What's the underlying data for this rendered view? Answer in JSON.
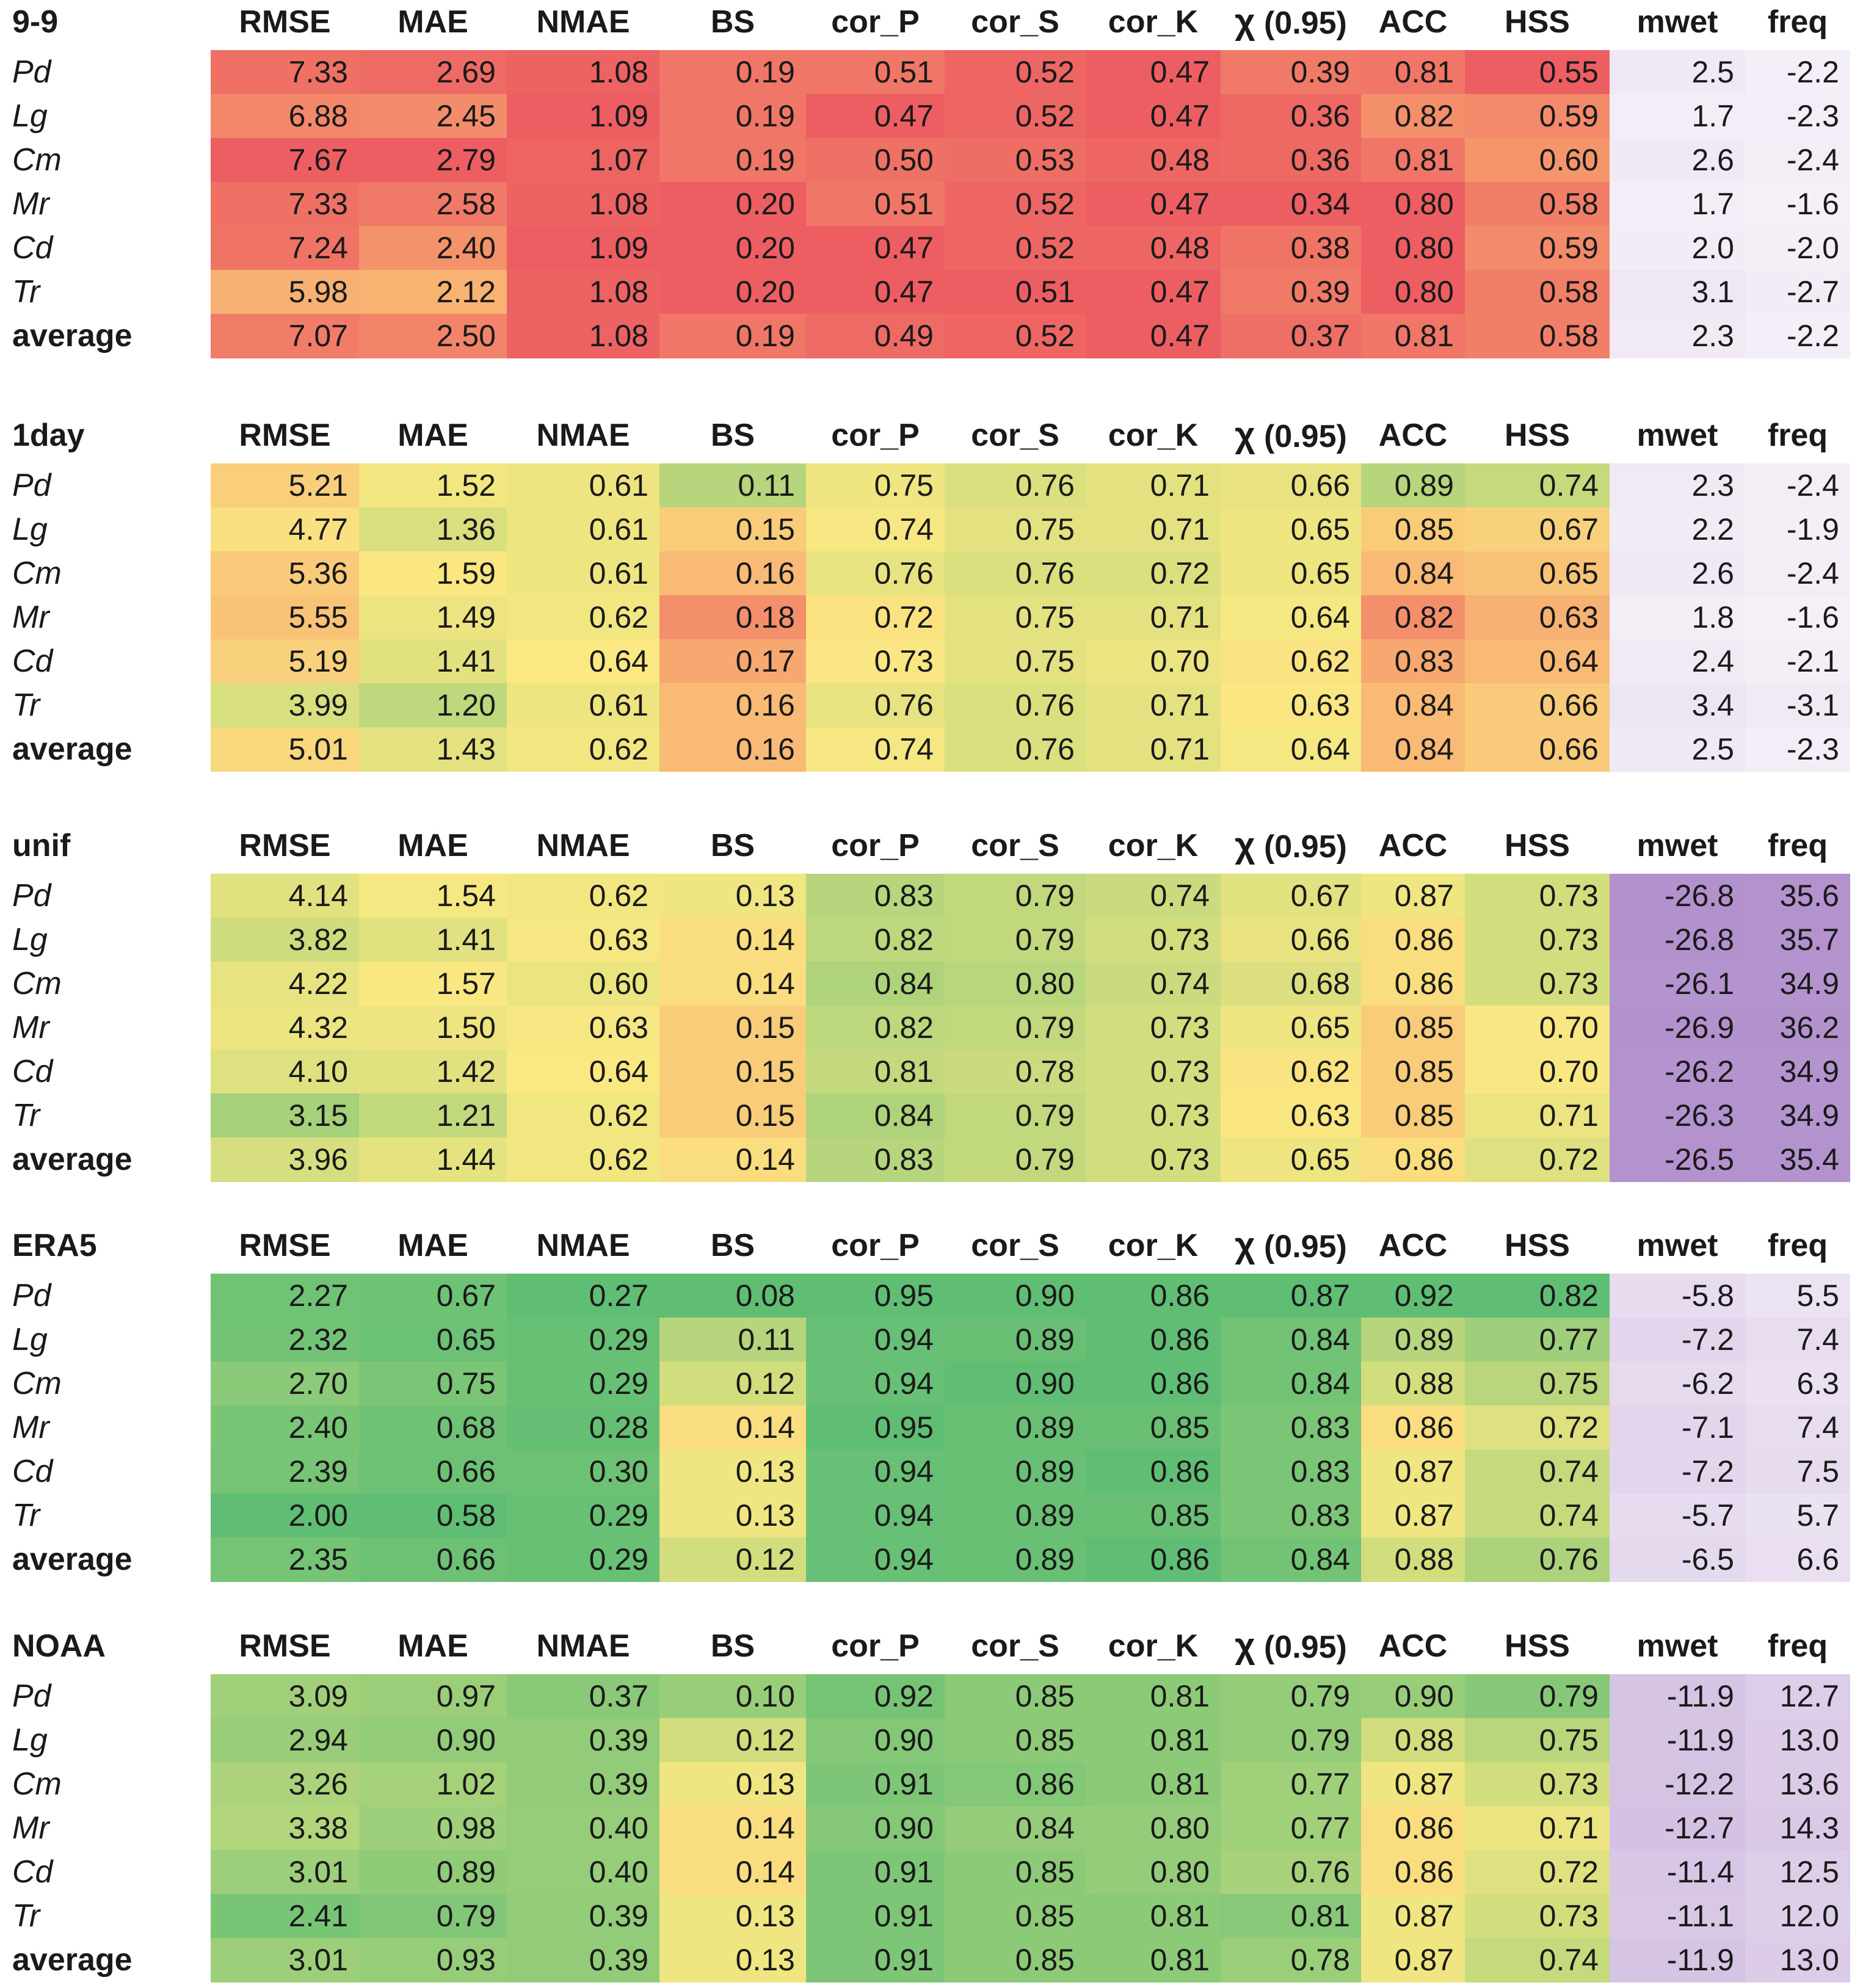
{
  "chart_data": {
    "type": "table",
    "columns": [
      "RMSE",
      "MAE",
      "NMAE",
      "BS",
      "cor_P",
      "cor_S",
      "cor_K",
      "χ (0.95)",
      "ACC",
      "HSS",
      "mwet",
      "freq"
    ],
    "column_header_parts": {
      "chi_symbol": "χ",
      "chi_suffix": " (0.95)"
    },
    "tables": [
      {
        "title": "9-9",
        "rows": [
          {
            "label": "Pd",
            "values": [
              "7.33",
              "2.69",
              "1.08",
              "0.19",
              "0.51",
              "0.52",
              "0.47",
              "0.39",
              "0.81",
              "0.55",
              "2.5",
              "-2.2"
            ]
          },
          {
            "label": "Lg",
            "values": [
              "6.88",
              "2.45",
              "1.09",
              "0.19",
              "0.47",
              "0.52",
              "0.47",
              "0.36",
              "0.82",
              "0.59",
              "1.7",
              "-2.3"
            ]
          },
          {
            "label": "Cm",
            "values": [
              "7.67",
              "2.79",
              "1.07",
              "0.19",
              "0.50",
              "0.53",
              "0.48",
              "0.36",
              "0.81",
              "0.60",
              "2.6",
              "-2.4"
            ]
          },
          {
            "label": "Mr",
            "values": [
              "7.33",
              "2.58",
              "1.08",
              "0.20",
              "0.51",
              "0.52",
              "0.47",
              "0.34",
              "0.80",
              "0.58",
              "1.7",
              "-1.6"
            ]
          },
          {
            "label": "Cd",
            "values": [
              "7.24",
              "2.40",
              "1.09",
              "0.20",
              "0.47",
              "0.52",
              "0.48",
              "0.38",
              "0.80",
              "0.59",
              "2.0",
              "-2.0"
            ]
          },
          {
            "label": "Tr",
            "values": [
              "5.98",
              "2.12",
              "1.08",
              "0.20",
              "0.47",
              "0.51",
              "0.47",
              "0.39",
              "0.80",
              "0.58",
              "3.1",
              "-2.7"
            ]
          },
          {
            "label": "average",
            "values": [
              "7.07",
              "2.50",
              "1.08",
              "0.19",
              "0.49",
              "0.52",
              "0.47",
              "0.37",
              "0.81",
              "0.58",
              "2.3",
              "-2.2"
            ]
          }
        ]
      },
      {
        "title": "1day",
        "rows": [
          {
            "label": "Pd",
            "values": [
              "5.21",
              "1.52",
              "0.61",
              "0.11",
              "0.75",
              "0.76",
              "0.71",
              "0.66",
              "0.89",
              "0.74",
              "2.3",
              "-2.4"
            ]
          },
          {
            "label": "Lg",
            "values": [
              "4.77",
              "1.36",
              "0.61",
              "0.15",
              "0.74",
              "0.75",
              "0.71",
              "0.65",
              "0.85",
              "0.67",
              "2.2",
              "-1.9"
            ]
          },
          {
            "label": "Cm",
            "values": [
              "5.36",
              "1.59",
              "0.61",
              "0.16",
              "0.76",
              "0.76",
              "0.72",
              "0.65",
              "0.84",
              "0.65",
              "2.6",
              "-2.4"
            ]
          },
          {
            "label": "Mr",
            "values": [
              "5.55",
              "1.49",
              "0.62",
              "0.18",
              "0.72",
              "0.75",
              "0.71",
              "0.64",
              "0.82",
              "0.63",
              "1.8",
              "-1.6"
            ]
          },
          {
            "label": "Cd",
            "values": [
              "5.19",
              "1.41",
              "0.64",
              "0.17",
              "0.73",
              "0.75",
              "0.70",
              "0.62",
              "0.83",
              "0.64",
              "2.4",
              "-2.1"
            ]
          },
          {
            "label": "Tr",
            "values": [
              "3.99",
              "1.20",
              "0.61",
              "0.16",
              "0.76",
              "0.76",
              "0.71",
              "0.63",
              "0.84",
              "0.66",
              "3.4",
              "-3.1"
            ]
          },
          {
            "label": "average",
            "values": [
              "5.01",
              "1.43",
              "0.62",
              "0.16",
              "0.74",
              "0.76",
              "0.71",
              "0.64",
              "0.84",
              "0.66",
              "2.5",
              "-2.3"
            ]
          }
        ]
      },
      {
        "title": "unif",
        "rows": [
          {
            "label": "Pd",
            "values": [
              "4.14",
              "1.54",
              "0.62",
              "0.13",
              "0.83",
              "0.79",
              "0.74",
              "0.67",
              "0.87",
              "0.73",
              "-26.8",
              "35.6"
            ]
          },
          {
            "label": "Lg",
            "values": [
              "3.82",
              "1.41",
              "0.63",
              "0.14",
              "0.82",
              "0.79",
              "0.73",
              "0.66",
              "0.86",
              "0.73",
              "-26.8",
              "35.7"
            ]
          },
          {
            "label": "Cm",
            "values": [
              "4.22",
              "1.57",
              "0.60",
              "0.14",
              "0.84",
              "0.80",
              "0.74",
              "0.68",
              "0.86",
              "0.73",
              "-26.1",
              "34.9"
            ]
          },
          {
            "label": "Mr",
            "values": [
              "4.32",
              "1.50",
              "0.63",
              "0.15",
              "0.82",
              "0.79",
              "0.73",
              "0.65",
              "0.85",
              "0.70",
              "-26.9",
              "36.2"
            ]
          },
          {
            "label": "Cd",
            "values": [
              "4.10",
              "1.42",
              "0.64",
              "0.15",
              "0.81",
              "0.78",
              "0.73",
              "0.62",
              "0.85",
              "0.70",
              "-26.2",
              "34.9"
            ]
          },
          {
            "label": "Tr",
            "values": [
              "3.15",
              "1.21",
              "0.62",
              "0.15",
              "0.84",
              "0.79",
              "0.73",
              "0.63",
              "0.85",
              "0.71",
              "-26.3",
              "34.9"
            ]
          },
          {
            "label": "average",
            "values": [
              "3.96",
              "1.44",
              "0.62",
              "0.14",
              "0.83",
              "0.79",
              "0.73",
              "0.65",
              "0.86",
              "0.72",
              "-26.5",
              "35.4"
            ]
          }
        ]
      },
      {
        "title": "ERA5",
        "rows": [
          {
            "label": "Pd",
            "values": [
              "2.27",
              "0.67",
              "0.27",
              "0.08",
              "0.95",
              "0.90",
              "0.86",
              "0.87",
              "0.92",
              "0.82",
              "-5.8",
              "5.5"
            ]
          },
          {
            "label": "Lg",
            "values": [
              "2.32",
              "0.65",
              "0.29",
              "0.11",
              "0.94",
              "0.89",
              "0.86",
              "0.84",
              "0.89",
              "0.77",
              "-7.2",
              "7.4"
            ]
          },
          {
            "label": "Cm",
            "values": [
              "2.70",
              "0.75",
              "0.29",
              "0.12",
              "0.94",
              "0.90",
              "0.86",
              "0.84",
              "0.88",
              "0.75",
              "-6.2",
              "6.3"
            ]
          },
          {
            "label": "Mr",
            "values": [
              "2.40",
              "0.68",
              "0.28",
              "0.14",
              "0.95",
              "0.89",
              "0.85",
              "0.83",
              "0.86",
              "0.72",
              "-7.1",
              "7.4"
            ]
          },
          {
            "label": "Cd",
            "values": [
              "2.39",
              "0.66",
              "0.30",
              "0.13",
              "0.94",
              "0.89",
              "0.86",
              "0.83",
              "0.87",
              "0.74",
              "-7.2",
              "7.5"
            ]
          },
          {
            "label": "Tr",
            "values": [
              "2.00",
              "0.58",
              "0.29",
              "0.13",
              "0.94",
              "0.89",
              "0.85",
              "0.83",
              "0.87",
              "0.74",
              "-5.7",
              "5.7"
            ]
          },
          {
            "label": "average",
            "values": [
              "2.35",
              "0.66",
              "0.29",
              "0.12",
              "0.94",
              "0.89",
              "0.86",
              "0.84",
              "0.88",
              "0.76",
              "-6.5",
              "6.6"
            ]
          }
        ]
      },
      {
        "title": "NOAA",
        "rows": [
          {
            "label": "Pd",
            "values": [
              "3.09",
              "0.97",
              "0.37",
              "0.10",
              "0.92",
              "0.85",
              "0.81",
              "0.79",
              "0.90",
              "0.79",
              "-11.9",
              "12.7"
            ]
          },
          {
            "label": "Lg",
            "values": [
              "2.94",
              "0.90",
              "0.39",
              "0.12",
              "0.90",
              "0.85",
              "0.81",
              "0.79",
              "0.88",
              "0.75",
              "-11.9",
              "13.0"
            ]
          },
          {
            "label": "Cm",
            "values": [
              "3.26",
              "1.02",
              "0.39",
              "0.13",
              "0.91",
              "0.86",
              "0.81",
              "0.77",
              "0.87",
              "0.73",
              "-12.2",
              "13.6"
            ]
          },
          {
            "label": "Mr",
            "values": [
              "3.38",
              "0.98",
              "0.40",
              "0.14",
              "0.90",
              "0.84",
              "0.80",
              "0.77",
              "0.86",
              "0.71",
              "-12.7",
              "14.3"
            ]
          },
          {
            "label": "Cd",
            "values": [
              "3.01",
              "0.89",
              "0.40",
              "0.14",
              "0.91",
              "0.85",
              "0.80",
              "0.76",
              "0.86",
              "0.72",
              "-11.4",
              "12.5"
            ]
          },
          {
            "label": "Tr",
            "values": [
              "2.41",
              "0.79",
              "0.39",
              "0.13",
              "0.91",
              "0.85",
              "0.81",
              "0.81",
              "0.87",
              "0.73",
              "-11.1",
              "12.0"
            ]
          },
          {
            "label": "average",
            "values": [
              "3.01",
              "0.93",
              "0.39",
              "0.13",
              "0.91",
              "0.85",
              "0.81",
              "0.78",
              "0.87",
              "0.74",
              "-11.9",
              "13.0"
            ]
          }
        ]
      }
    ]
  }
}
